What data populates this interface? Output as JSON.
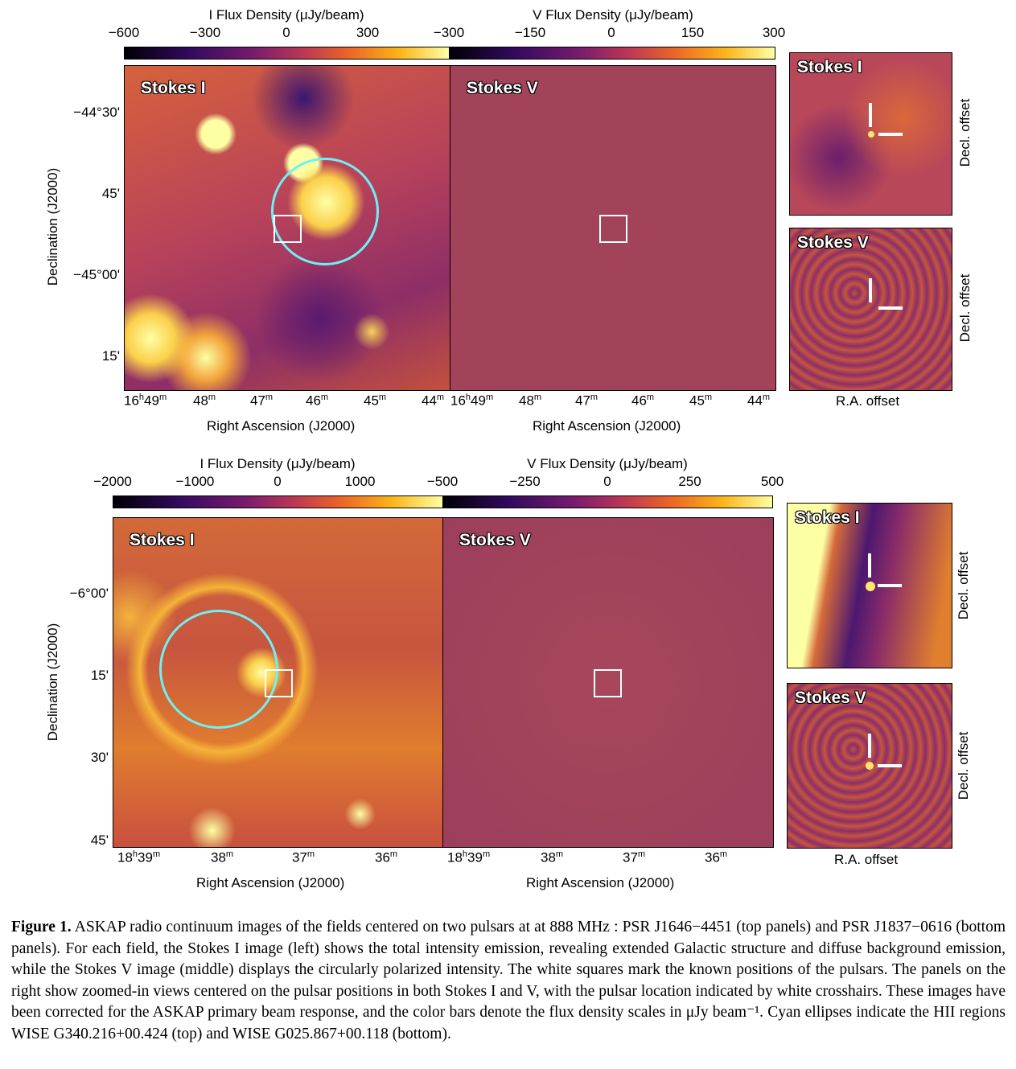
{
  "top": {
    "cbar_I": {
      "title": "I Flux Density (μJy/beam)",
      "ticks": [
        "−600",
        "−300",
        "0",
        "300"
      ]
    },
    "cbar_V": {
      "title": "V Flux Density (μJy/beam)",
      "ticks": [
        "−300",
        "−150",
        "0",
        "150",
        "300"
      ]
    },
    "panel_I_title": "Stokes I",
    "panel_V_title": "Stokes V",
    "zoom_I_title": "Stokes I",
    "zoom_V_title": "Stokes V",
    "dec_ticks": [
      "−44°30'",
      "45'",
      "−45°00'",
      "15'"
    ],
    "ra_ticks": [
      {
        "t": "16",
        "s": "h",
        "t2": "49",
        "s2": "m"
      },
      {
        "t": "48",
        "s": "m"
      },
      {
        "t": "47",
        "s": "m"
      },
      {
        "t": "46",
        "s": "m"
      },
      {
        "t": "45",
        "s": "m"
      },
      {
        "t": "44",
        "s": "m"
      }
    ],
    "xlabel": "Right Ascension (J2000)",
    "ylabel": "Declination (J2000)",
    "zoom_ylabel": "Decl. offset",
    "zoom_xlabel": "R.A. offset"
  },
  "bottom": {
    "cbar_I": {
      "title": "I Flux Density (μJy/beam)",
      "ticks": [
        "−2000",
        "−1000",
        "0",
        "1000"
      ]
    },
    "cbar_V": {
      "title": "V Flux Density (μJy/beam)",
      "ticks": [
        "−500",
        "−250",
        "0",
        "250",
        "500"
      ]
    },
    "panel_I_title": "Stokes I",
    "panel_V_title": "Stokes V",
    "zoom_I_title": "Stokes I",
    "zoom_V_title": "Stokes V",
    "dec_ticks": [
      "−6°00'",
      "15'",
      "30'",
      "45'"
    ],
    "ra_ticks": [
      {
        "t": "18",
        "s": "h",
        "t2": "39",
        "s2": "m"
      },
      {
        "t": "38",
        "s": "m"
      },
      {
        "t": "37",
        "s": "m"
      },
      {
        "t": "36",
        "s": "m"
      }
    ],
    "xlabel": "Right Ascension (J2000)",
    "ylabel": "Declination (J2000)",
    "zoom_ylabel": "Decl. offset",
    "zoom_xlabel": "R.A. offset"
  },
  "caption": {
    "label": "Figure 1.",
    "text": " ASKAP radio continuum images of the fields centered on two pulsars at at 888 MHz : PSR J1646−4451 (top panels) and PSR J1837−0616 (bottom panels). For each field, the Stokes I image (left) shows the total intensity emission, revealing extended Galactic structure and diffuse background emission, while the Stokes V image (middle) displays the circularly polarized intensity. The white squares mark the known positions of the pulsars. The panels on the right show zoomed-in views centered on the pulsar positions in both Stokes I and V, with the pulsar location indicated by white crosshairs. These images have been corrected for the ASKAP primary beam response, and the color bars denote the flux density scales in μJy beam⁻¹. Cyan ellipses indicate the HII regions WISE G340.216+00.424 (top) and WISE G025.867+00.118 (bottom)."
  }
}
